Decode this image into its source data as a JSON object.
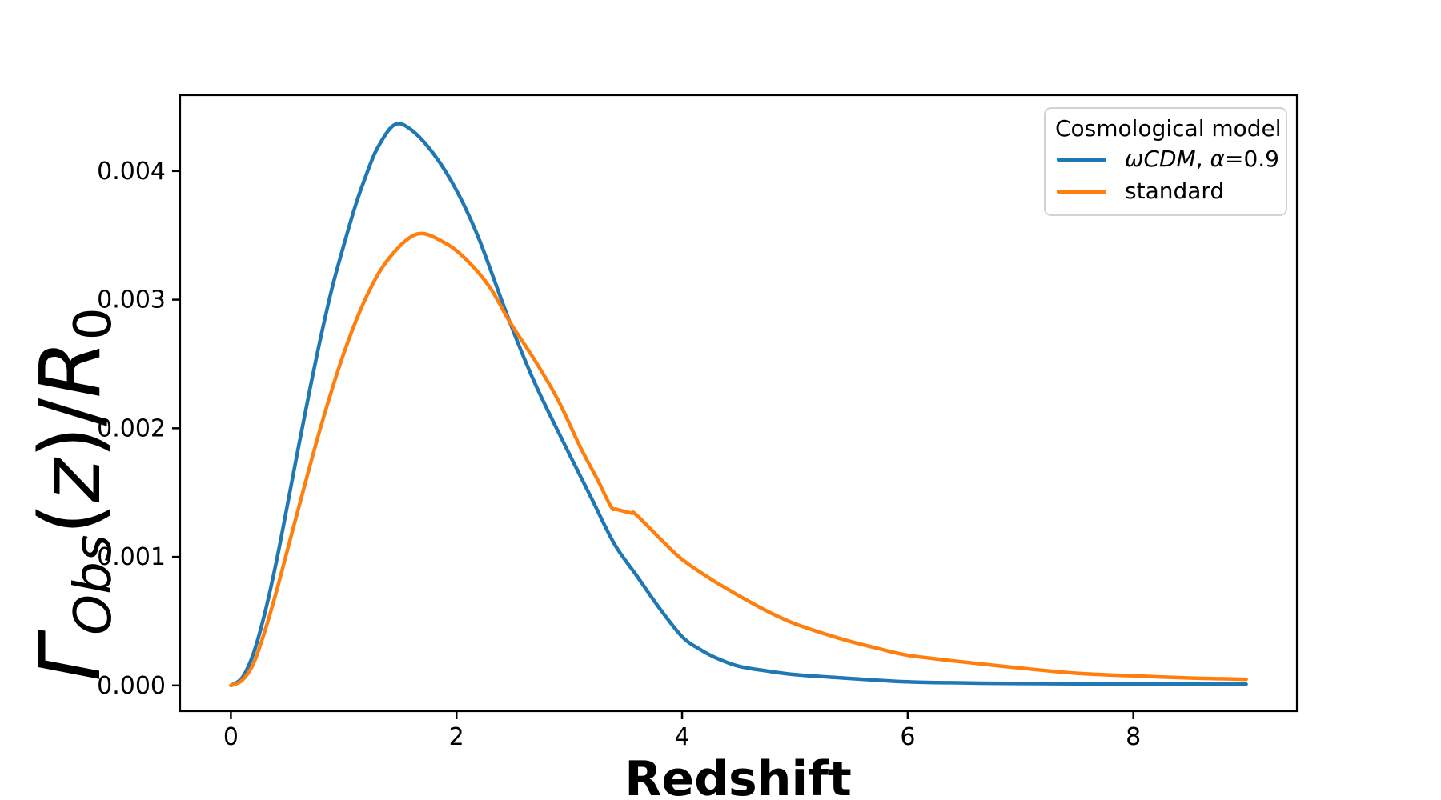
{
  "figure": {
    "background": "#ffffff",
    "frame_color": "#000000",
    "xlabel": "Redshift",
    "ylabel_plain": "Γ_Obs(z)/R_0",
    "ylabel_rich": [
      {
        "t": "Γ",
        "italic": true
      },
      {
        "t": "Obs",
        "italic": true,
        "sub": true
      },
      {
        "t": "(",
        "italic": false
      },
      {
        "t": "z",
        "italic": true
      },
      {
        "t": ")/",
        "italic": false
      },
      {
        "t": "R",
        "italic": true
      },
      {
        "t": "0",
        "italic": false,
        "sub": true
      }
    ]
  },
  "legend": {
    "title": "Cosmological model",
    "entries": [
      {
        "label": "ωCDM, α=0.9",
        "color": "#1f77b4",
        "rich": [
          {
            "t": "ωCDM",
            "italic": true
          },
          {
            "t": ", ",
            "italic": false
          },
          {
            "t": "α",
            "italic": true
          },
          {
            "t": "=0.9",
            "italic": false
          }
        ]
      },
      {
        "label": "standard",
        "color": "#ff7f0e",
        "rich": [
          {
            "t": "standard",
            "italic": false
          }
        ]
      }
    ]
  },
  "chart_data": {
    "type": "line",
    "title": "",
    "xlabel": "Redshift",
    "ylabel": "Γ_Obs(z)/R_0",
    "xlim": [
      -0.45,
      9.45
    ],
    "ylim": [
      -0.0002,
      0.00459
    ],
    "grid": false,
    "legend_position": "upper right",
    "x_ticks": [
      0,
      2,
      4,
      6,
      8
    ],
    "x_tick_labels": [
      "0",
      "2",
      "4",
      "6",
      "8"
    ],
    "y_ticks": [
      0.0,
      0.001,
      0.002,
      0.003,
      0.004
    ],
    "y_tick_labels": [
      "0.000",
      "0.001",
      "0.002",
      "0.003",
      "0.004"
    ],
    "series": [
      {
        "name": "ωCDM, α=0.9",
        "color": "#1f77b4",
        "points": [
          [
            0.0,
            0.0
          ],
          [
            0.1,
            6e-05
          ],
          [
            0.2,
            0.00025
          ],
          [
            0.3,
            0.00056
          ],
          [
            0.4,
            0.00095
          ],
          [
            0.5,
            0.0014
          ],
          [
            0.6,
            0.00186
          ],
          [
            0.7,
            0.0023
          ],
          [
            0.8,
            0.00272
          ],
          [
            0.9,
            0.0031
          ],
          [
            1.0,
            0.00342
          ],
          [
            1.1,
            0.00372
          ],
          [
            1.2,
            0.00397
          ],
          [
            1.3,
            0.00418
          ],
          [
            1.45,
            0.00436
          ],
          [
            1.6,
            0.00432
          ],
          [
            1.8,
            0.00413
          ],
          [
            2.0,
            0.00385
          ],
          [
            2.2,
            0.00347
          ],
          [
            2.47,
            0.00283
          ],
          [
            2.7,
            0.00234
          ],
          [
            3.0,
            0.0018
          ],
          [
            3.2,
            0.00145
          ],
          [
            3.4,
            0.0011
          ],
          [
            3.6,
            0.00085
          ],
          [
            3.8,
            0.0006
          ],
          [
            4.0,
            0.00038
          ],
          [
            4.15,
            0.000285
          ],
          [
            4.3,
            0.000215
          ],
          [
            4.5,
            0.00015
          ],
          [
            4.75,
            0.000113
          ],
          [
            5.0,
            8.5e-05
          ],
          [
            5.4,
            6e-05
          ],
          [
            6.0,
            2.8e-05
          ],
          [
            6.5,
            2e-05
          ],
          [
            7.0,
            1.5e-05
          ],
          [
            8.0,
            1.1e-05
          ],
          [
            9.0,
            1e-05
          ]
        ]
      },
      {
        "name": "standard",
        "color": "#ff7f0e",
        "points": [
          [
            0.0,
            0.0
          ],
          [
            0.1,
            4e-05
          ],
          [
            0.2,
            0.00017
          ],
          [
            0.3,
            0.00042
          ],
          [
            0.4,
            0.00072
          ],
          [
            0.5,
            0.00105
          ],
          [
            0.6,
            0.00138
          ],
          [
            0.8,
            0.00202
          ],
          [
            1.0,
            0.00258
          ],
          [
            1.2,
            0.00302
          ],
          [
            1.4,
            0.00332
          ],
          [
            1.65,
            0.00351
          ],
          [
            1.9,
            0.00344
          ],
          [
            2.1,
            0.0033
          ],
          [
            2.3,
            0.00309
          ],
          [
            2.47,
            0.00283
          ],
          [
            2.7,
            0.00252
          ],
          [
            2.9,
            0.00222
          ],
          [
            3.1,
            0.00185
          ],
          [
            3.25,
            0.0016
          ],
          [
            3.37,
            0.00139
          ],
          [
            3.42,
            0.00137
          ],
          [
            3.55,
            0.00134
          ],
          [
            3.59,
            0.00133
          ],
          [
            3.83,
            0.00112
          ],
          [
            4.0,
            0.00098
          ],
          [
            4.25,
            0.00083
          ],
          [
            4.5,
            0.0007
          ],
          [
            4.75,
            0.00058
          ],
          [
            5.0,
            0.00048
          ],
          [
            5.4,
            0.000365
          ],
          [
            5.75,
            0.000285
          ],
          [
            6.0,
            0.000235
          ],
          [
            6.45,
            0.000187
          ],
          [
            7.0,
            0.000135
          ],
          [
            7.5,
            9.5e-05
          ],
          [
            8.0,
            7.5e-05
          ],
          [
            8.55,
            5.7e-05
          ],
          [
            9.0,
            4.8e-05
          ]
        ]
      }
    ]
  }
}
